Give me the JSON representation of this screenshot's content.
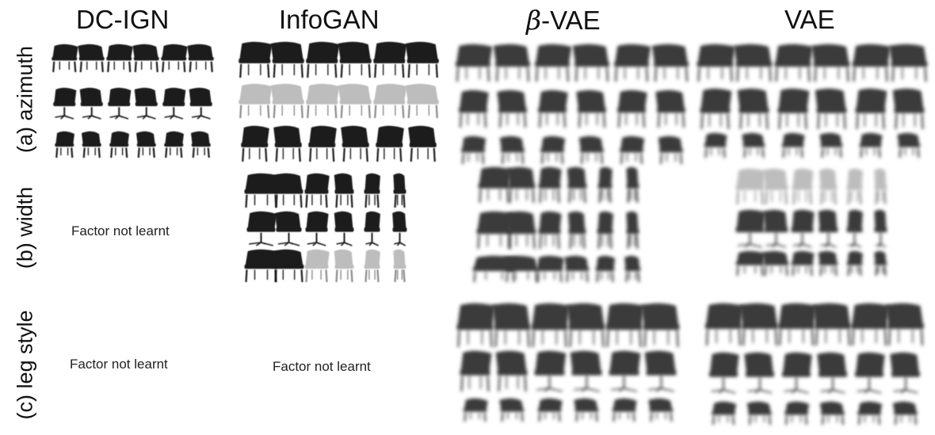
{
  "columns": [
    {
      "label_prefix": "",
      "label_greek": "",
      "label": "DC-IGN"
    },
    {
      "label_prefix": "",
      "label_greek": "",
      "label": "InfoGAN"
    },
    {
      "label_prefix": "",
      "label_greek": "β",
      "label": "-VAE"
    },
    {
      "label_prefix": "",
      "label_greek": "",
      "label": "VAE"
    }
  ],
  "rows": [
    {
      "label": "(a) azimuth"
    },
    {
      "label": "(b) width"
    },
    {
      "label": "(c) leg style"
    }
  ],
  "notes": {
    "dcign_width": "Factor not learnt",
    "dcign_leg": "Factor not learnt",
    "infogan_leg": "Factor not learnt"
  },
  "panels": [
    {
      "panel": "dcign-azimuth",
      "style": "sharp",
      "image_rows": 3,
      "image_cols": 6
    },
    {
      "panel": "infogan-azimuth",
      "style": "sharp",
      "image_rows": 3,
      "image_cols": 6
    },
    {
      "panel": "betavae-azimuth",
      "style": "blurry",
      "image_rows": 3,
      "image_cols": 6
    },
    {
      "panel": "vae-azimuth",
      "style": "blurry",
      "image_rows": 3,
      "image_cols": 6
    },
    {
      "panel": "infogan-width",
      "style": "sharp",
      "image_rows": 3,
      "image_cols": 6
    },
    {
      "panel": "betavae-width",
      "style": "blurry",
      "image_rows": 3,
      "image_cols": 6
    },
    {
      "panel": "vae-width",
      "style": "blurry",
      "image_rows": 3,
      "image_cols": 6
    },
    {
      "panel": "betavae-leg",
      "style": "blurry",
      "image_rows": 3,
      "image_cols": 6
    },
    {
      "panel": "vae-leg",
      "style": "blurry",
      "image_rows": 3,
      "image_cols": 6
    }
  ]
}
